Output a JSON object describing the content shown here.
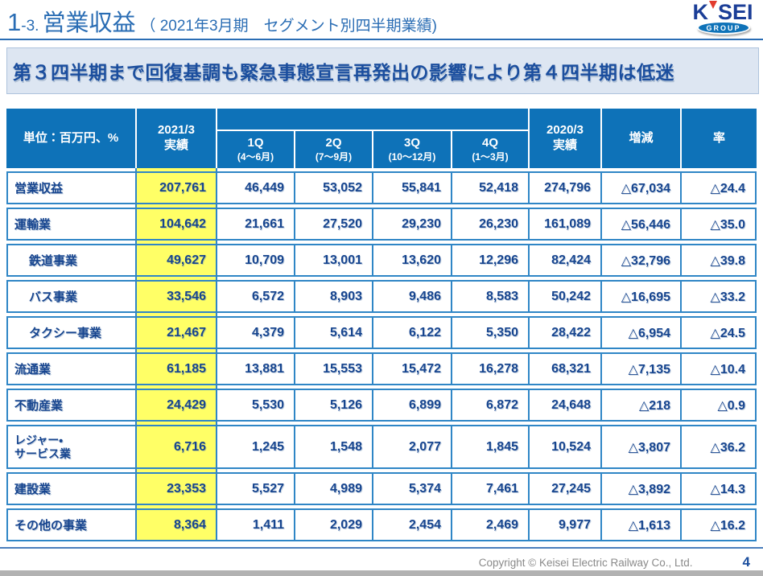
{
  "colors": {
    "title-blue": "#2a6db4",
    "rule-blue": "#2a6db4",
    "headline-bg": "#dde6f2",
    "headline-border": "#aec3dd",
    "navy": "#17458f",
    "header-bg": "#0e72b8",
    "border-blue": "#2f86c6",
    "highlight": "#ffff66",
    "gray-text": "#8a8a8a",
    "band-gray": "#b2b2b2",
    "footer-line": "#4a7ebc",
    "logo-navy": "#1b3e97",
    "logo-red": "#e23b2e"
  },
  "title": {
    "num_large": "1",
    "num_small": "-3.",
    "main": "営業収益",
    "paren": "（ 2021年3月期　セグメント別四半期業績)"
  },
  "logo": {
    "k": "K",
    "sei": "SEI",
    "group": "GROUP"
  },
  "headline": "第３四半期まで回復基調も緊急事態宣言再発出の影響により第４四半期は低迷",
  "table": {
    "header": {
      "unit": "単位：百万円、%",
      "y2021": "2021/3\n実績",
      "quarters": [
        {
          "q": "1Q",
          "months": "(4～6月)"
        },
        {
          "q": "2Q",
          "months": "(7～9月)"
        },
        {
          "q": "3Q",
          "months": "(10～12月)"
        },
        {
          "q": "4Q",
          "months": "(1～3月)"
        }
      ],
      "y2020": "2020/3\n実績",
      "change": "増減",
      "rate": "率"
    },
    "rows": [
      {
        "label": "営業収益",
        "indent": false,
        "values": [
          "207,761",
          "46,449",
          "53,052",
          "55,841",
          "52,418",
          "274,796",
          "△67,034",
          "△24.4"
        ]
      },
      {
        "label": "運輸業",
        "indent": false,
        "values": [
          "104,642",
          "21,661",
          "27,520",
          "29,230",
          "26,230",
          "161,089",
          "△56,446",
          "△35.0"
        ]
      },
      {
        "label": "鉄道事業",
        "indent": true,
        "values": [
          "49,627",
          "10,709",
          "13,001",
          "13,620",
          "12,296",
          "82,424",
          "△32,796",
          "△39.8"
        ]
      },
      {
        "label": "バス事業",
        "indent": true,
        "values": [
          "33,546",
          "6,572",
          "8,903",
          "9,486",
          "8,583",
          "50,242",
          "△16,695",
          "△33.2"
        ]
      },
      {
        "label": "タクシー事業",
        "indent": true,
        "values": [
          "21,467",
          "4,379",
          "5,614",
          "6,122",
          "5,350",
          "28,422",
          "△6,954",
          "△24.5"
        ]
      },
      {
        "label": "流通業",
        "indent": false,
        "values": [
          "61,185",
          "13,881",
          "15,553",
          "15,472",
          "16,278",
          "68,321",
          "△7,135",
          "△10.4"
        ]
      },
      {
        "label": "不動産業",
        "indent": false,
        "values": [
          "24,429",
          "5,530",
          "5,126",
          "6,899",
          "6,872",
          "24,648",
          "△218",
          "△0.9"
        ]
      },
      {
        "label": "レジャー・\nサービス業",
        "indent": false,
        "values": [
          "6,716",
          "1,245",
          "1,548",
          "2,077",
          "1,845",
          "10,524",
          "△3,807",
          "△36.2"
        ]
      },
      {
        "label": "建設業",
        "indent": false,
        "values": [
          "23,353",
          "5,527",
          "4,989",
          "5,374",
          "7,461",
          "27,245",
          "△3,892",
          "△14.3"
        ]
      },
      {
        "label": "その他の事業",
        "indent": false,
        "values": [
          "8,364",
          "1,411",
          "2,029",
          "2,454",
          "2,469",
          "9,977",
          "△1,613",
          "△16.2"
        ]
      }
    ]
  },
  "footer": {
    "copyright": "Copyright ©  Keisei Electric Railway Co., Ltd.",
    "page": "4"
  }
}
